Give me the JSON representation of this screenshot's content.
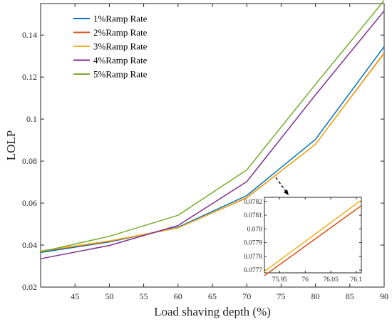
{
  "chart_data": {
    "type": "line",
    "title": "",
    "xlabel": "Load shaving depth (%)",
    "ylabel": "LOLP",
    "xlim": [
      40,
      90
    ],
    "ylim": [
      0.02,
      0.155
    ],
    "xticks": [
      45,
      50,
      55,
      60,
      65,
      70,
      75,
      80,
      85,
      90
    ],
    "yticks": [
      0.02,
      0.04,
      0.06,
      0.08,
      0.1,
      0.12,
      0.14
    ],
    "ytick_labels": [
      "0.02",
      "0.04",
      "0.06",
      "0.08",
      "0.1",
      "0.12",
      "0.14"
    ],
    "grid": false,
    "legend_position": "top-left",
    "x": [
      40,
      50,
      60,
      70,
      80,
      90
    ],
    "series": [
      {
        "name": "1%Ramp Rate",
        "color": "#0072BD",
        "values": [
          0.0365,
          0.0415,
          0.0485,
          0.0636,
          0.0903,
          0.1345
        ]
      },
      {
        "name": "2%Ramp Rate",
        "color": "#D95319",
        "values": [
          0.037,
          0.0418,
          0.0482,
          0.0625,
          0.088,
          0.1315
        ]
      },
      {
        "name": "3%Ramp Rate",
        "color": "#EDB120",
        "values": [
          0.0372,
          0.042,
          0.0482,
          0.0627,
          0.088,
          0.1312
        ]
      },
      {
        "name": "4%Ramp Rate",
        "color": "#7E2F8E",
        "values": [
          0.0335,
          0.0398,
          0.0493,
          0.0702,
          0.1115,
          0.1515
        ]
      },
      {
        "name": "5%Ramp Rate",
        "color": "#77AC30",
        "values": [
          0.0368,
          0.0442,
          0.0542,
          0.0758,
          0.1165,
          0.1565
        ]
      }
    ],
    "inset": {
      "xlim": [
        75.92,
        76.11
      ],
      "ylim": [
        0.07768,
        0.07823
      ],
      "xticks": [
        75.95,
        76,
        76.05,
        76.1
      ],
      "xtick_labels": [
        "75.95",
        "76",
        "76.05",
        "76.1"
      ],
      "yticks": [
        0.0777,
        0.0778,
        0.0779,
        0.078,
        0.0781,
        0.0782
      ],
      "ytick_labels": [
        "0.0777",
        "0.0778",
        "0.0779",
        "0.078",
        "0.0781",
        "0.0782"
      ],
      "series": [
        {
          "name": "3%Ramp Rate",
          "color": "#EDB120",
          "x": [
            75.92,
            76.11
          ],
          "values": [
            0.07769,
            0.07821
          ]
        },
        {
          "name": "2%Ramp Rate",
          "color": "#D95319",
          "x": [
            75.92,
            76.11
          ],
          "values": [
            0.07766,
            0.07817
          ]
        }
      ]
    }
  }
}
